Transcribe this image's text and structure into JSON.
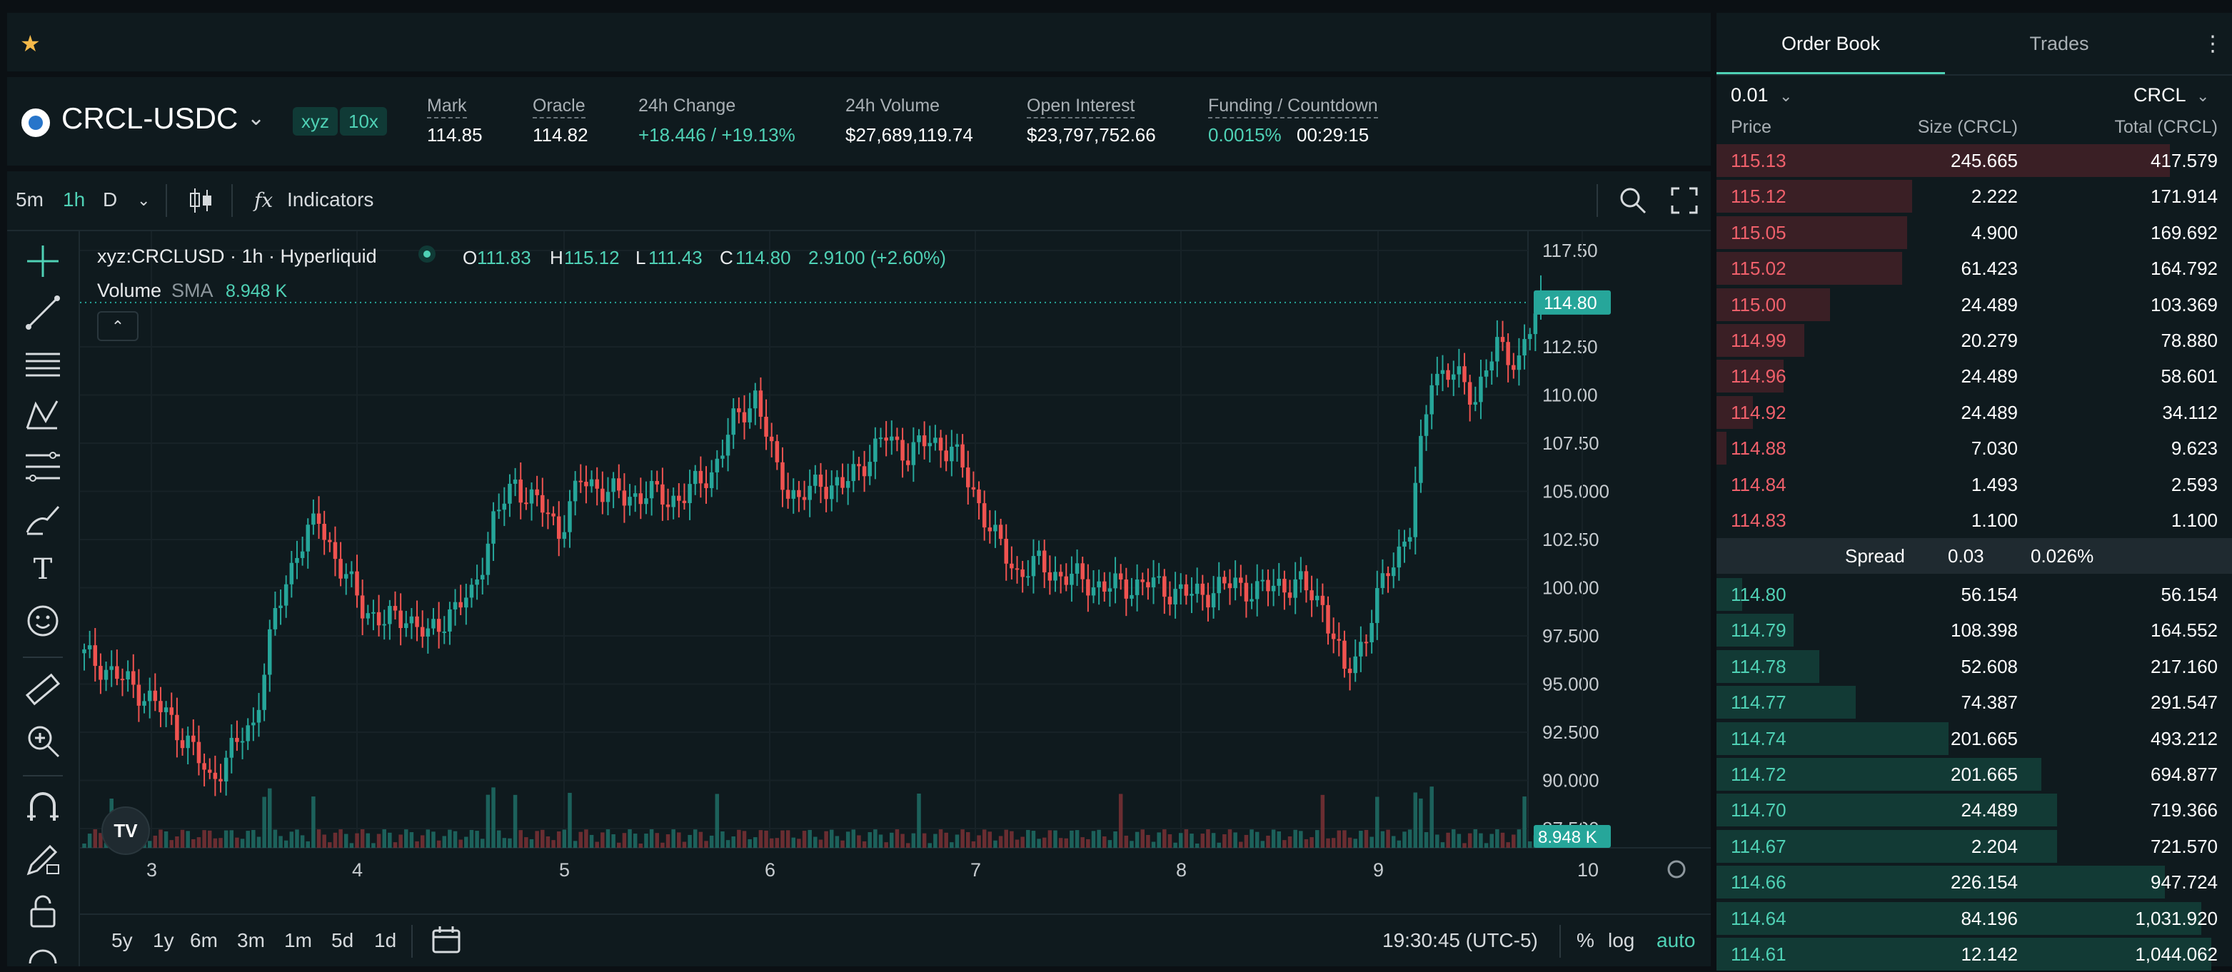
{
  "topbar": {
    "favorite_icon": "star-icon"
  },
  "ticker": {
    "pair": "CRCL-USDC",
    "tag_dex": "xyz",
    "tag_leverage": "10x",
    "stats": [
      {
        "label": "Mark",
        "value": "114.85",
        "tone": "white"
      },
      {
        "label": "Oracle",
        "value": "114.82",
        "tone": "white"
      },
      {
        "label": "24h Change",
        "value": "+18.446 / +19.13%",
        "tone": "green"
      },
      {
        "label": "24h Volume",
        "value": "$27,689,119.74",
        "tone": "white"
      },
      {
        "label": "Open Interest",
        "value": "$23,797,752.66",
        "tone": "white"
      },
      {
        "label": "Funding / Countdown",
        "value": "0.0015%",
        "value2": "00:29:15",
        "tone": "green"
      }
    ]
  },
  "toolbar": {
    "timeframes": [
      "5m",
      "1h",
      "D"
    ],
    "active_timeframe": "1h",
    "indicators_label": "Indicators",
    "fx_label": "fx"
  },
  "legend": {
    "symbol": "xyz:CRCLUSD · 1h · Hyperliquid",
    "o_label": "O",
    "o": "111.83",
    "h_label": "H",
    "h": "115.12",
    "l_label": "L",
    "l": "111.43",
    "c_label": "C",
    "c": "114.80",
    "change": "2.9100 (+2.60%)",
    "volume_label": "Volume",
    "sma_label": "SMA",
    "volume_value": "8.948 K",
    "collapse_icon": "chevron-up-icon"
  },
  "chart_data": {
    "type": "candlestick",
    "y_ticks": [
      "117.50",
      "112.50",
      "110.00",
      "107.50",
      "105.000",
      "102.50",
      "100.00",
      "97.500",
      "95.000",
      "92.500",
      "90.000",
      "87.500"
    ],
    "y_range": [
      86.5,
      118.5
    ],
    "x_ticks": [
      "3",
      "4",
      "5",
      "6",
      "7",
      "8",
      "9",
      "10"
    ],
    "last_price_label": "114.80",
    "volume_label": "8.948 K",
    "series_points": [
      96.0,
      95.2,
      94.5,
      93.4,
      92.0,
      90.0,
      91.5,
      93.0,
      98.5,
      102.0,
      103.5,
      101.0,
      99.0,
      98.2,
      98.6,
      97.4,
      98.8,
      99.5,
      103.5,
      105.4,
      104.4,
      103.0,
      105.5,
      105.2,
      104.6,
      105.0,
      104.5,
      105.0,
      106.0,
      108.5,
      110.0,
      106.0,
      104.5,
      105.5,
      105.2,
      106.6,
      107.8,
      107.0,
      107.6,
      107.2,
      105.0,
      102.5,
      100.8,
      101.2,
      100.6,
      100.4,
      100.0,
      100.1,
      100.2,
      99.9,
      99.6,
      99.9,
      100.2,
      99.8,
      100.2,
      100.1,
      99.2,
      95.5,
      97.6,
      101.0,
      103.0,
      111.2,
      111.0,
      110.0,
      112.5,
      111.8,
      114.8
    ]
  },
  "left_tools": [
    "crosshair-icon",
    "trend-line-icon",
    "horizontal-lines-icon",
    "pattern-icon",
    "fib-icon",
    "brush-icon",
    "text-icon",
    "emoji-icon",
    "ruler-icon",
    "zoom-in-icon",
    "magnet-icon",
    "lock-draw-icon",
    "lock-icon"
  ],
  "bottom_bar": {
    "ranges": [
      "5y",
      "1y",
      "6m",
      "3m",
      "1m",
      "5d",
      "1d"
    ],
    "time": "19:30:45 (UTC-5)",
    "pct_label": "%",
    "log_label": "log",
    "auto_label": "auto"
  },
  "book": {
    "tabs": [
      "Order Book",
      "Trades"
    ],
    "precision": "0.01",
    "unit": "CRCL",
    "headers": [
      "Price",
      "Size (CRCL)",
      "Total (CRCL)"
    ],
    "asks": [
      {
        "price": "115.13",
        "size": "245.665",
        "total": "417.579",
        "depth": 0.88
      },
      {
        "price": "115.12",
        "size": "2.222",
        "total": "171.914",
        "depth": 0.38
      },
      {
        "price": "115.05",
        "size": "4.900",
        "total": "169.692",
        "depth": 0.37
      },
      {
        "price": "115.02",
        "size": "61.423",
        "total": "164.792",
        "depth": 0.36
      },
      {
        "price": "115.00",
        "size": "24.489",
        "total": "103.369",
        "depth": 0.22
      },
      {
        "price": "114.99",
        "size": "20.279",
        "total": "78.880",
        "depth": 0.17
      },
      {
        "price": "114.96",
        "size": "24.489",
        "total": "58.601",
        "depth": 0.13
      },
      {
        "price": "114.92",
        "size": "24.489",
        "total": "34.112",
        "depth": 0.07
      },
      {
        "price": "114.88",
        "size": "7.030",
        "total": "9.623",
        "depth": 0.02
      },
      {
        "price": "114.84",
        "size": "1.493",
        "total": "2.593",
        "depth": 0.0
      },
      {
        "price": "114.83",
        "size": "1.100",
        "total": "1.100",
        "depth": 0.0
      }
    ],
    "spread_label": "Spread",
    "spread_value": "0.03",
    "spread_pct": "0.026%",
    "bids": [
      {
        "price": "114.80",
        "size": "56.154",
        "total": "56.154",
        "depth": 0.05
      },
      {
        "price": "114.79",
        "size": "108.398",
        "total": "164.552",
        "depth": 0.15
      },
      {
        "price": "114.78",
        "size": "52.608",
        "total": "217.160",
        "depth": 0.2
      },
      {
        "price": "114.77",
        "size": "74.387",
        "total": "291.547",
        "depth": 0.27
      },
      {
        "price": "114.74",
        "size": "201.665",
        "total": "493.212",
        "depth": 0.45
      },
      {
        "price": "114.72",
        "size": "201.665",
        "total": "694.877",
        "depth": 0.63
      },
      {
        "price": "114.70",
        "size": "24.489",
        "total": "719.366",
        "depth": 0.66
      },
      {
        "price": "114.67",
        "size": "2.204",
        "total": "721.570",
        "depth": 0.66
      },
      {
        "price": "114.66",
        "size": "226.154",
        "total": "947.724",
        "depth": 0.87
      },
      {
        "price": "114.64",
        "size": "84.196",
        "total": "1,031.920",
        "depth": 0.94
      },
      {
        "price": "114.61",
        "size": "12.142",
        "total": "1,044.062",
        "depth": 0.96
      }
    ]
  }
}
